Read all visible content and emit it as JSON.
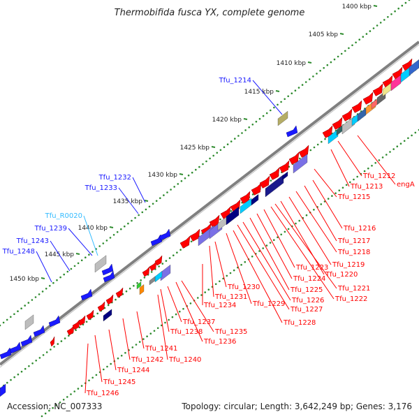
{
  "title": "Thermobifida fusca YX, complete genome",
  "footer": {
    "accession": "Accession: NC_007333",
    "summary": "Topology: circular; Length: 3,642,249 bp; Genes: 3,176"
  },
  "colors": {
    "backbone": "#808080",
    "ruler_dots": "#2e8b2e",
    "forward_gene": "#ff0000",
    "label_forward": "#1a1aff",
    "label_reverse": "#ff0000",
    "label_rna": "#33bbff"
  },
  "scale_labels": [
    "1400 kbp",
    "1405 kbp",
    "1410 kbp",
    "1415 kbp",
    "1420 kbp",
    "1425 kbp",
    "1430 kbp",
    "1435 kbp",
    "1440 kbp",
    "1445 kbp",
    "1450 kbp"
  ],
  "labels_upper": [
    {
      "text": "Tfu_1214",
      "kind": "forward"
    },
    {
      "text": "Tfu_1232",
      "kind": "forward"
    },
    {
      "text": "Tfu_1233",
      "kind": "forward"
    },
    {
      "text": "Tfu_R0020",
      "kind": "rna"
    },
    {
      "text": "Tfu_1239",
      "kind": "forward"
    },
    {
      "text": "Tfu_1243",
      "kind": "forward"
    },
    {
      "text": "Tfu_1248",
      "kind": "forward"
    }
  ],
  "labels_lower": [
    "Tfu_1212",
    "engA",
    "Tfu_1213",
    "Tfu_1215",
    "Tfu_1216",
    "Tfu_1217",
    "Tfu_1218",
    "Tfu_1219",
    "Tfu_1220",
    "Tfu_1221",
    "Tfu_1222",
    "Tfu_1223",
    "Tfu_1224",
    "Tfu_1225",
    "Tfu_1226",
    "Tfu_1227",
    "Tfu_1228",
    "Tfu_1229",
    "Tfu_1230",
    "Tfu_1231",
    "Tfu_1234",
    "Tfu_1235",
    "Tfu_1236",
    "Tfu_1237",
    "Tfu_1238",
    "Tfu_1240",
    "Tfu_1241",
    "Tfu_1242",
    "Tfu_1244",
    "Tfu_1245",
    "Tfu_1246"
  ]
}
